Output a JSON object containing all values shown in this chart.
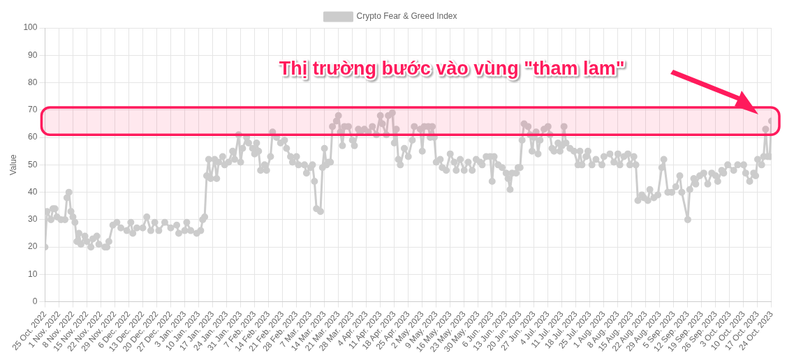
{
  "chart_data": {
    "type": "line",
    "ylabel": "Value",
    "legend": "top",
    "grid": true,
    "marker": "circle",
    "line_style": "solid",
    "annotations": [
      "Thị trường bước vào vùng \"tham lam\""
    ],
    "bands": [
      {
        "axis": "y",
        "from": 61,
        "to": 71,
        "color": "#ff1a5c"
      }
    ],
    "ylim": [
      0,
      100
    ],
    "yticks": [
      0,
      10,
      20,
      30,
      40,
      50,
      60,
      70,
      80,
      90,
      100
    ],
    "xlim": [
      "2022-10-25",
      "2023-10-24"
    ],
    "xticks": [
      {
        "value": "2022-10-25",
        "label": "25 Oct. 2022"
      },
      {
        "value": "2022-11-01",
        "label": "1 Nov. 2022"
      },
      {
        "value": "2022-11-08",
        "label": "8 Nov. 2022"
      },
      {
        "value": "2022-11-15",
        "label": "15 Nov. 2022"
      },
      {
        "value": "2022-11-22",
        "label": "22 Nov. 2022"
      },
      {
        "value": "2022-11-29",
        "label": "29 Nov. 2022"
      },
      {
        "value": "2022-12-06",
        "label": "6 Dec. 2022"
      },
      {
        "value": "2022-12-13",
        "label": "13 Dec. 2022"
      },
      {
        "value": "2022-12-20",
        "label": "20 Dec. 2022"
      },
      {
        "value": "2022-12-27",
        "label": "27 Dec. 2022"
      },
      {
        "value": "2023-01-03",
        "label": "3 Jan. 2023"
      },
      {
        "value": "2023-01-10",
        "label": "10 Jan. 2023"
      },
      {
        "value": "2023-01-17",
        "label": "17 Jan. 2023"
      },
      {
        "value": "2023-01-24",
        "label": "24 Jan. 2023"
      },
      {
        "value": "2023-01-31",
        "label": "31 Jan. 2023"
      },
      {
        "value": "2023-02-07",
        "label": "7 Feb. 2023"
      },
      {
        "value": "2023-02-14",
        "label": "14 Feb. 2023"
      },
      {
        "value": "2023-02-21",
        "label": "21 Feb. 2023"
      },
      {
        "value": "2023-02-28",
        "label": "28 Feb. 2023"
      },
      {
        "value": "2023-03-07",
        "label": "7 Mar. 2023"
      },
      {
        "value": "2023-03-14",
        "label": "14 Mar. 2023"
      },
      {
        "value": "2023-03-21",
        "label": "21 Mar. 2023"
      },
      {
        "value": "2023-03-28",
        "label": "28 Mar. 2023"
      },
      {
        "value": "2023-04-04",
        "label": "4 Apr. 2023"
      },
      {
        "value": "2023-04-11",
        "label": "11 Apr. 2023"
      },
      {
        "value": "2023-04-18",
        "label": "18 Apr. 2023"
      },
      {
        "value": "2023-04-25",
        "label": "25 Apr. 2023"
      },
      {
        "value": "2023-05-02",
        "label": "2 May. 2023"
      },
      {
        "value": "2023-05-09",
        "label": "9 May. 2023"
      },
      {
        "value": "2023-05-16",
        "label": "16 May. 2023"
      },
      {
        "value": "2023-05-23",
        "label": "23 May. 2023"
      },
      {
        "value": "2023-05-30",
        "label": "30 May. 2023"
      },
      {
        "value": "2023-06-06",
        "label": "6 Jun. 2023"
      },
      {
        "value": "2023-06-13",
        "label": "13 Jun. 2023"
      },
      {
        "value": "2023-06-20",
        "label": "20 Jun. 2023"
      },
      {
        "value": "2023-06-27",
        "label": "27 Jun. 2023"
      },
      {
        "value": "2023-07-04",
        "label": "4 Jul. 2023"
      },
      {
        "value": "2023-07-11",
        "label": "11 Jul. 2023"
      },
      {
        "value": "2023-07-18",
        "label": "18 Jul. 2023"
      },
      {
        "value": "2023-07-25",
        "label": "25 Jul. 2023"
      },
      {
        "value": "2023-08-01",
        "label": "1 Aug. 2023"
      },
      {
        "value": "2023-08-08",
        "label": "8 Aug. 2023"
      },
      {
        "value": "2023-08-15",
        "label": "15 Aug. 2023"
      },
      {
        "value": "2023-08-22",
        "label": "22 Aug. 2023"
      },
      {
        "value": "2023-08-29",
        "label": "29 Aug. 2023"
      },
      {
        "value": "2023-09-05",
        "label": "5 Sep. 2023"
      },
      {
        "value": "2023-09-12",
        "label": "12 Sep. 2023"
      },
      {
        "value": "2023-09-19",
        "label": "19 Sep. 2023"
      },
      {
        "value": "2023-09-26",
        "label": "26 Sep. 2023"
      },
      {
        "value": "2023-10-03",
        "label": "3 Oct. 2023"
      },
      {
        "value": "2023-10-10",
        "label": "10 Oct. 2023"
      },
      {
        "value": "2023-10-17",
        "label": "17 Oct. 2023"
      },
      {
        "value": "2023-10-24",
        "label": "24 Oct. 2023"
      }
    ],
    "x": [
      "2022-10-25",
      "2022-10-26",
      "2022-10-28",
      "2022-10-29",
      "2022-10-30",
      "2022-10-31",
      "2022-11-02",
      "2022-11-04",
      "2022-11-05",
      "2022-11-06",
      "2022-11-07",
      "2022-11-08",
      "2022-11-09",
      "2022-11-10",
      "2022-11-11",
      "2022-11-12",
      "2022-11-14",
      "2022-11-15",
      "2022-11-17",
      "2022-11-18",
      "2022-11-20",
      "2022-11-21",
      "2022-11-24",
      "2022-11-25",
      "2022-11-26",
      "2022-11-28",
      "2022-11-30",
      "2022-12-02",
      "2022-12-05",
      "2022-12-07",
      "2022-12-08",
      "2022-12-10",
      "2022-12-13",
      "2022-12-15",
      "2022-12-17",
      "2022-12-19",
      "2022-12-21",
      "2022-12-24",
      "2022-12-27",
      "2022-12-30",
      "2022-12-31",
      "2023-01-03",
      "2023-01-04",
      "2023-01-06",
      "2023-01-09",
      "2023-01-11",
      "2023-01-12",
      "2023-01-13",
      "2023-01-14",
      "2023-01-15",
      "2023-01-16",
      "2023-01-18",
      "2023-01-19",
      "2023-01-20",
      "2023-01-22",
      "2023-01-23",
      "2023-01-25",
      "2023-01-27",
      "2023-01-28",
      "2023-01-30",
      "2023-01-31",
      "2023-02-01",
      "2023-02-03",
      "2023-02-04",
      "2023-02-06",
      "2023-02-07",
      "2023-02-08",
      "2023-02-09",
      "2023-02-10",
      "2023-02-12",
      "2023-02-13",
      "2023-02-15",
      "2023-02-16",
      "2023-02-18",
      "2023-02-20",
      "2023-02-22",
      "2023-02-23",
      "2023-02-25",
      "2023-02-26",
      "2023-02-28",
      "2023-03-01",
      "2023-03-04",
      "2023-03-05",
      "2023-03-07",
      "2023-03-08",
      "2023-03-09",
      "2023-03-10",
      "2023-03-12",
      "2023-03-13",
      "2023-03-14",
      "2023-03-15",
      "2023-03-16",
      "2023-03-17",
      "2023-03-18",
      "2023-03-20",
      "2023-03-21",
      "2023-03-22",
      "2023-03-23",
      "2023-03-24",
      "2023-03-26",
      "2023-03-28",
      "2023-03-29",
      "2023-03-31",
      "2023-04-01",
      "2023-04-03",
      "2023-04-05",
      "2023-04-07",
      "2023-04-09",
      "2023-04-11",
      "2023-04-12",
      "2023-04-14",
      "2023-04-15",
      "2023-04-17",
      "2023-04-18",
      "2023-04-19",
      "2023-04-20",
      "2023-04-21",
      "2023-04-23",
      "2023-04-25",
      "2023-04-27",
      "2023-04-28",
      "2023-05-01",
      "2023-05-02",
      "2023-05-03",
      "2023-05-05",
      "2023-05-06",
      "2023-05-07",
      "2023-05-08",
      "2023-05-09",
      "2023-05-11",
      "2023-05-12",
      "2023-05-14",
      "2023-05-16",
      "2023-05-18",
      "2023-05-19",
      "2023-05-21",
      "2023-05-23",
      "2023-05-25",
      "2023-05-27",
      "2023-05-29",
      "2023-05-31",
      "2023-06-01",
      "2023-06-03",
      "2023-06-05",
      "2023-06-06",
      "2023-06-07",
      "2023-06-09",
      "2023-06-11",
      "2023-06-13",
      "2023-06-14",
      "2023-06-15",
      "2023-06-16",
      "2023-06-18",
      "2023-06-19",
      "2023-06-20",
      "2023-06-21",
      "2023-06-22",
      "2023-06-24",
      "2023-06-25",
      "2023-06-26",
      "2023-06-27",
      "2023-06-28",
      "2023-06-29",
      "2023-06-30",
      "2023-07-02",
      "2023-07-04",
      "2023-07-05",
      "2023-07-06",
      "2023-07-07",
      "2023-07-09",
      "2023-07-10",
      "2023-07-11",
      "2023-07-12",
      "2023-07-13",
      "2023-07-15",
      "2023-07-17",
      "2023-07-19",
      "2023-07-20",
      "2023-07-21",
      "2023-07-23",
      "2023-07-24",
      "2023-07-26",
      "2023-07-28",
      "2023-07-31",
      "2023-08-01",
      "2023-08-04",
      "2023-08-06",
      "2023-08-08",
      "2023-08-09",
      "2023-08-11",
      "2023-08-13",
      "2023-08-14",
      "2023-08-16",
      "2023-08-17",
      "2023-08-18",
      "2023-08-20",
      "2023-08-21",
      "2023-08-23",
      "2023-08-24",
      "2023-08-26",
      "2023-08-28",
      "2023-08-30",
      "2023-08-31",
      "2023-09-02",
      "2023-09-04",
      "2023-09-06",
      "2023-09-08",
      "2023-09-09",
      "2023-09-12",
      "2023-09-13",
      "2023-09-15",
      "2023-09-16",
      "2023-09-18",
      "2023-09-20",
      "2023-09-22",
      "2023-09-24",
      "2023-09-26",
      "2023-09-27",
      "2023-09-29",
      "2023-09-30",
      "2023-10-02",
      "2023-10-05",
      "2023-10-07",
      "2023-10-10",
      "2023-10-11",
      "2023-10-13",
      "2023-10-15",
      "2023-10-16",
      "2023-10-17",
      "2023-10-19",
      "2023-10-20",
      "2023-10-21",
      "2023-10-22",
      "2023-10-23",
      "2023-10-24"
    ],
    "series": [
      {
        "name": "Crypto Fear & Greed Index",
        "color": "#cccccc",
        "values": [
          20,
          33,
          30,
          34,
          34,
          31,
          30,
          30,
          38,
          40,
          33,
          31,
          29,
          22,
          25,
          21,
          24,
          22,
          20,
          23,
          24,
          21,
          20,
          20,
          22,
          28,
          29,
          27,
          26,
          29,
          25,
          27,
          27,
          31,
          26,
          29,
          26,
          29,
          27,
          28,
          25,
          26,
          29,
          26,
          25,
          26,
          30,
          31,
          46,
          52,
          45,
          52,
          45,
          51,
          53,
          50,
          51,
          55,
          52,
          61,
          51,
          56,
          60,
          58,
          56,
          54,
          58,
          55,
          48,
          50,
          48,
          53,
          62,
          60,
          58,
          59,
          56,
          53,
          51,
          53,
          50,
          50,
          47,
          49,
          50,
          44,
          34,
          33,
          49,
          56,
          50,
          51,
          51,
          64,
          66,
          68,
          62,
          57,
          64,
          64,
          59,
          57,
          63,
          62,
          63,
          62,
          64,
          61,
          68,
          65,
          61,
          68,
          69,
          58,
          63,
          52,
          50,
          56,
          53,
          59,
          64,
          63,
          55,
          64,
          64,
          60,
          64,
          60,
          51,
          52,
          49,
          48,
          54,
          51,
          48,
          52,
          48,
          51,
          48,
          52,
          51,
          50,
          53,
          53,
          44,
          53,
          50,
          49,
          47,
          45,
          41,
          47,
          47,
          49,
          49,
          59,
          65,
          64,
          61,
          55,
          60,
          62,
          54,
          59,
          63,
          64,
          61,
          56,
          55,
          58,
          55,
          57,
          64,
          58,
          56,
          55,
          50,
          55,
          50,
          53,
          55,
          50,
          52,
          50,
          53,
          54,
          51,
          54,
          50,
          53,
          54,
          50,
          53,
          50,
          37,
          39,
          38,
          37,
          41,
          38,
          39,
          49,
          52,
          40,
          40,
          42,
          46,
          40,
          30,
          41,
          45,
          43,
          46,
          47,
          43,
          47,
          46,
          44,
          48,
          47,
          50,
          48,
          50,
          50,
          47,
          44,
          47,
          46,
          52,
          50,
          53,
          63,
          53,
          53,
          66
        ]
      }
    ]
  }
}
